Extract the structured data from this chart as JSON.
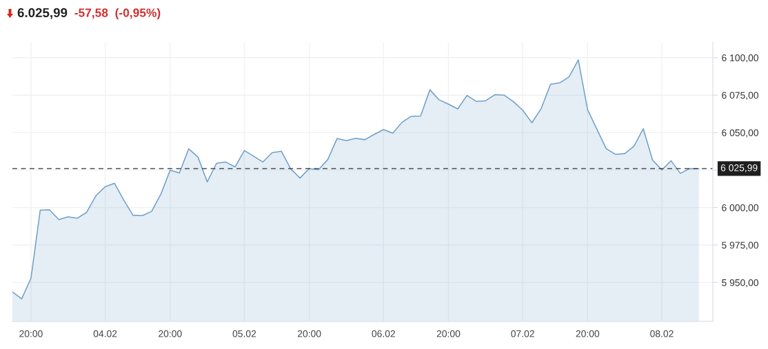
{
  "chart_data": {
    "type": "area",
    "title": "6.025,99",
    "subtitle": "-57,58  (-0,95%)",
    "categories": [
      null,
      null,
      "20:00",
      null,
      null,
      null,
      null,
      null,
      null,
      null,
      "04.02",
      null,
      null,
      null,
      null,
      null,
      null,
      "20:00",
      null,
      null,
      null,
      null,
      null,
      null,
      null,
      "05.02",
      null,
      null,
      null,
      null,
      null,
      null,
      "20:00",
      null,
      null,
      null,
      null,
      null,
      null,
      null,
      "06.02",
      null,
      null,
      null,
      null,
      null,
      null,
      "20:00",
      null,
      null,
      null,
      null,
      null,
      null,
      null,
      "07.02",
      null,
      null,
      null,
      null,
      null,
      null,
      "20:00",
      null,
      null,
      null,
      null,
      null,
      null,
      null,
      "08.02",
      null,
      null,
      null,
      null
    ],
    "values": [
      5943.7,
      5939.1,
      5952.8,
      5998.3,
      5998.5,
      5992.0,
      5993.8,
      5992.9,
      5996.8,
      6007.9,
      6013.9,
      6016.2,
      6005.0,
      5994.9,
      5994.6,
      5997.4,
      6008.9,
      6024.9,
      6023.1,
      6039.2,
      6033.7,
      6017.1,
      6029.5,
      6030.4,
      6027.1,
      6038.1,
      6034.3,
      6030.4,
      6036.6,
      6037.5,
      6025.8,
      6019.7,
      6026.0,
      6025.3,
      6032.1,
      6046.1,
      6044.7,
      6046.2,
      6045.3,
      6048.8,
      6052.0,
      6049.6,
      6056.9,
      6060.9,
      6061.1,
      6078.6,
      6071.8,
      6069.0,
      6065.8,
      6074.8,
      6070.8,
      6071.2,
      6075.3,
      6075.0,
      6070.7,
      6065.0,
      6056.6,
      6066.1,
      6082.2,
      6083.2,
      6087.2,
      6098.5,
      6065.3,
      6052.3,
      6039.3,
      6035.5,
      6036.0,
      6040.9,
      6052.6,
      6031.7,
      6025.1,
      6031.2,
      6022.8,
      6026.0,
      6026.0
    ],
    "color": "#6f9fc9",
    "ylim": [
      5924,
      6110
    ],
    "yticks": [
      {
        "value": 5950,
        "label": "5 950,00"
      },
      {
        "value": 5975,
        "label": "5 975,00"
      },
      {
        "value": 6000,
        "label": "6 000,00"
      },
      {
        "value": 6025,
        "label": null
      },
      {
        "value": 6050,
        "label": "6 050,00"
      },
      {
        "value": 6075,
        "label": "6 075,00"
      },
      {
        "value": 6100,
        "label": "6 100,00"
      }
    ],
    "ref_lines": [
      {
        "axis": "y",
        "value": 6025.99,
        "label": "6 025,99",
        "color": "#333333",
        "line_style": "dashed"
      }
    ],
    "grid": true
  }
}
